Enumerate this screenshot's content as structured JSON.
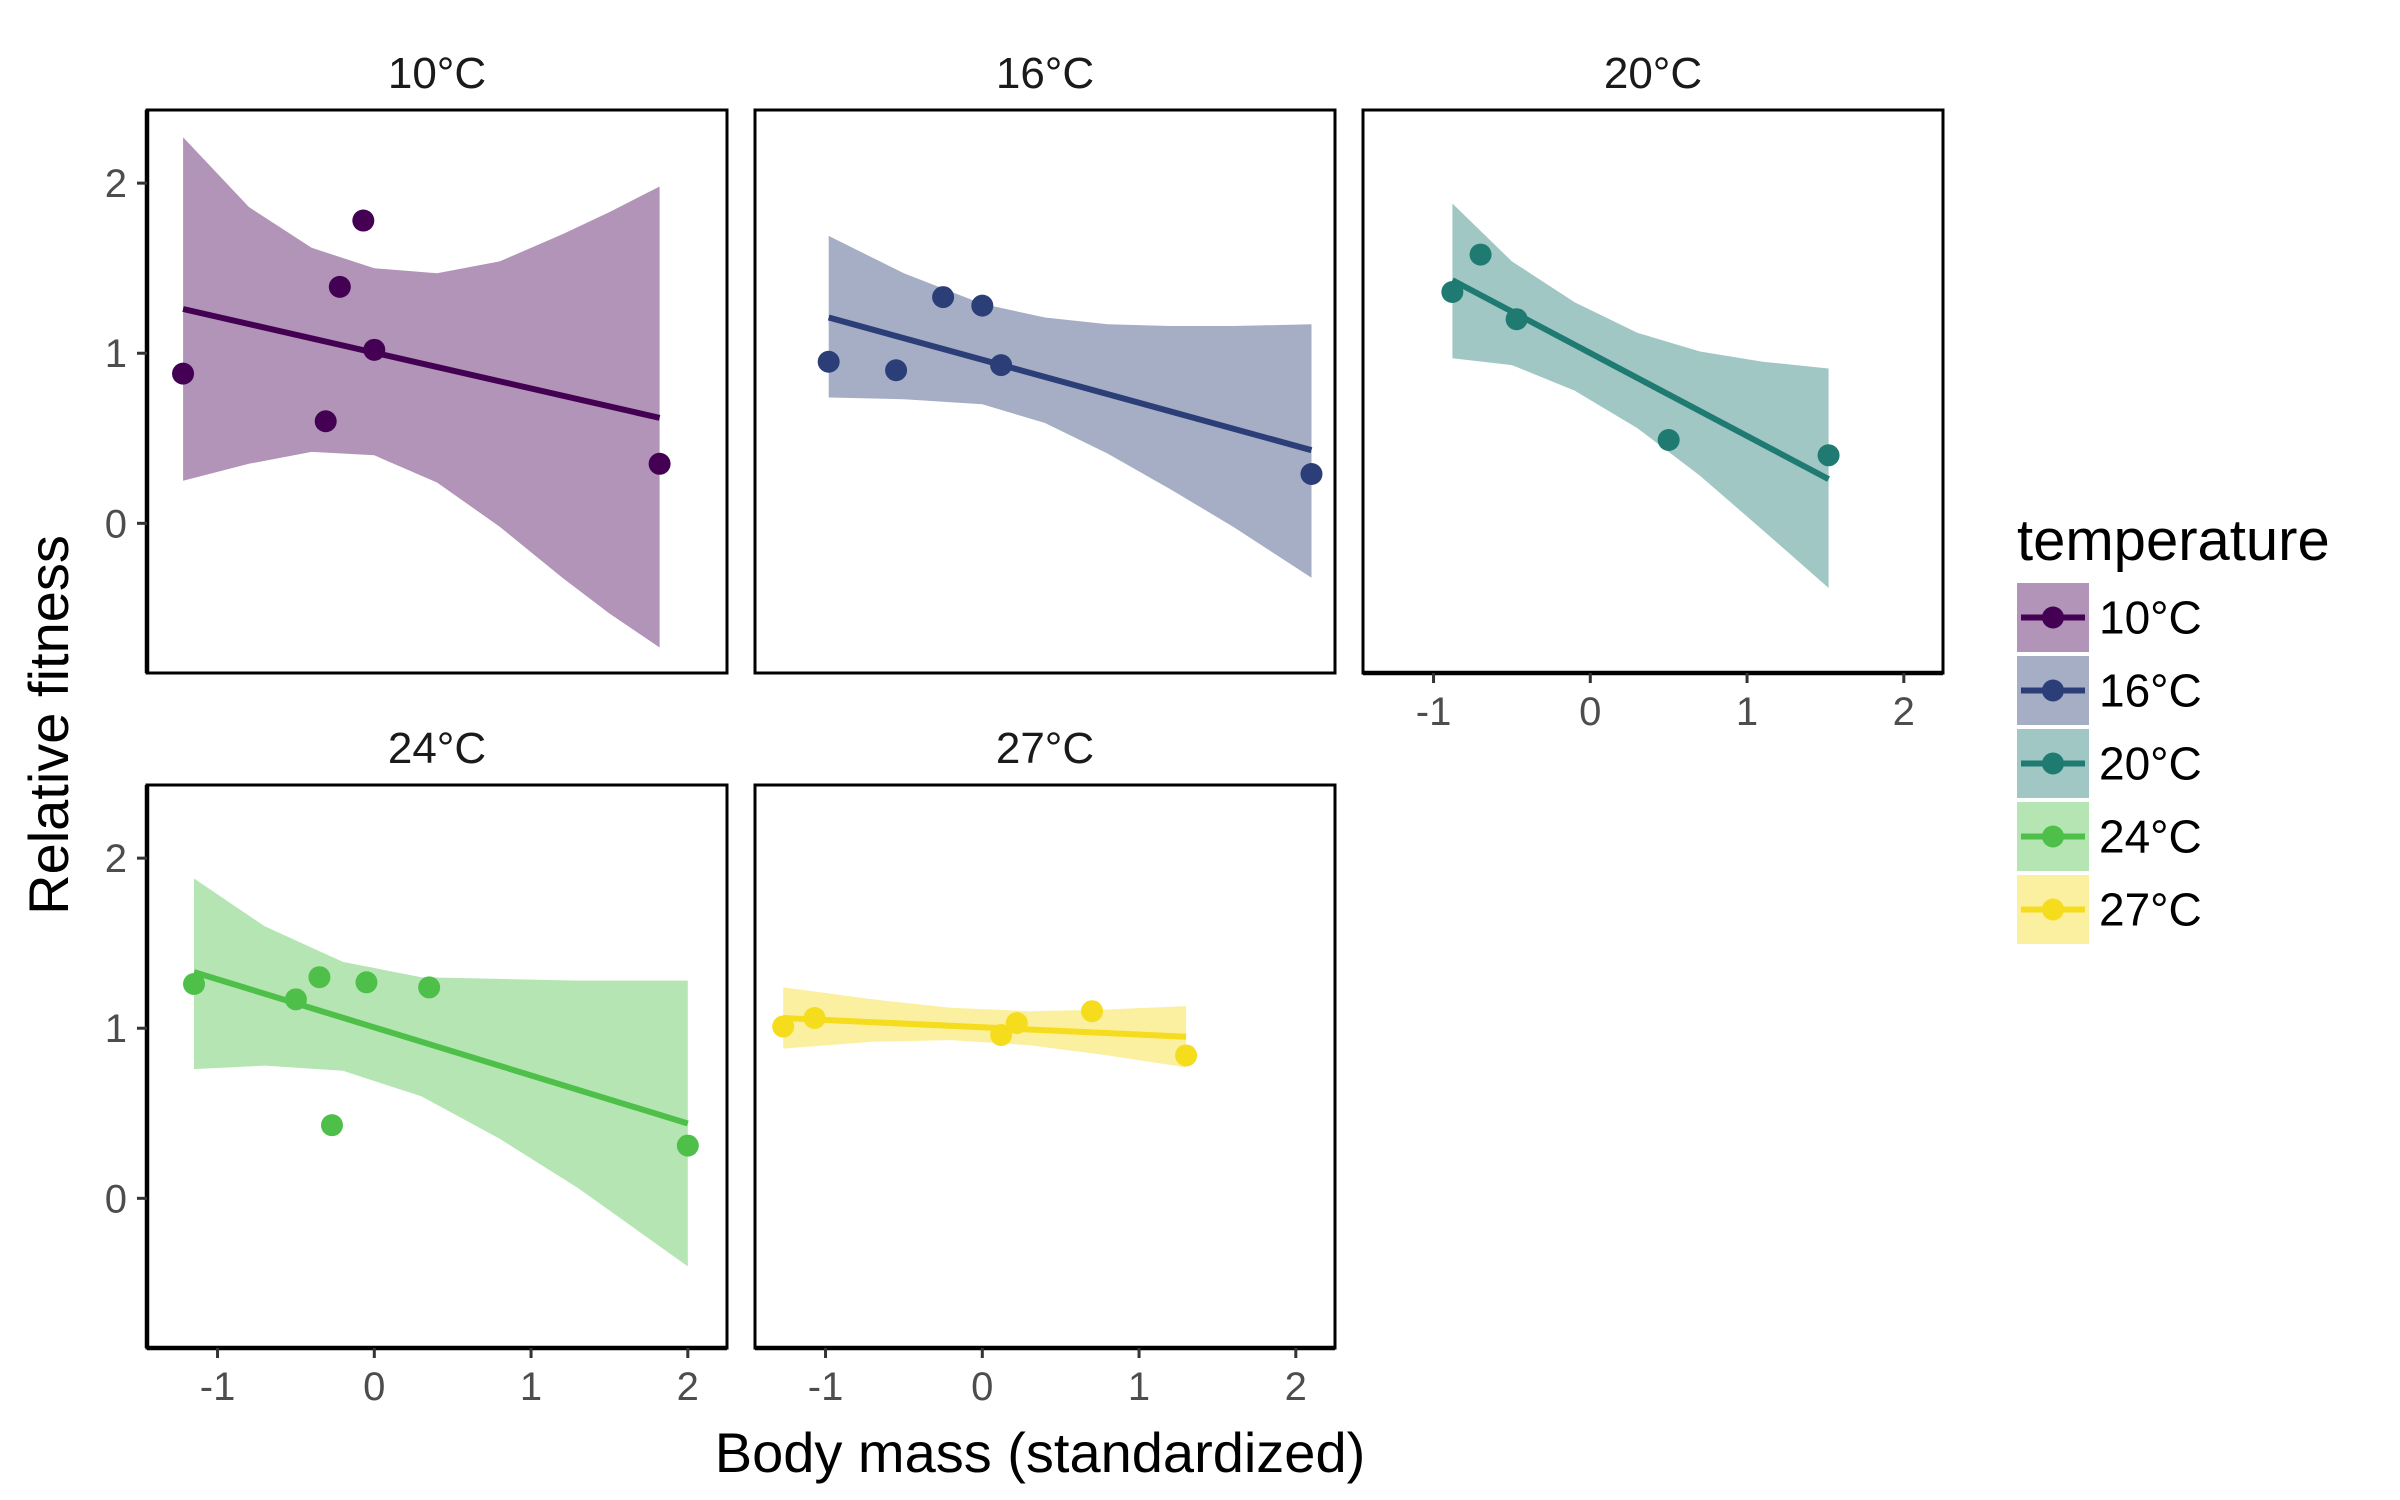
{
  "chart_data": {
    "type": "scatter",
    "facet_by": "temperature",
    "xlabel": "Body mass (standardized)",
    "ylabel": "Relative fitness",
    "xlim": [
      -1.45,
      2.25
    ],
    "ylim": [
      -0.88,
      2.43
    ],
    "x_ticks": [
      -1,
      0,
      1,
      2
    ],
    "y_ticks": [
      0,
      1,
      2
    ],
    "grid": false,
    "legend": {
      "title": "temperature",
      "placement": "right",
      "entries": [
        "10°C",
        "16°C",
        "20°C",
        "24°C",
        "27°C"
      ]
    },
    "series": [
      {
        "name": "10°C",
        "color": "#440154",
        "points": [
          [
            -1.22,
            0.88
          ],
          [
            -0.22,
            1.39
          ],
          [
            -0.07,
            1.78
          ],
          [
            0.0,
            1.02
          ],
          [
            -0.31,
            0.6
          ],
          [
            1.82,
            0.35
          ]
        ],
        "fit": [
          [
            -1.22,
            1.26
          ],
          [
            1.82,
            0.62
          ]
        ],
        "ribbon": [
          {
            "x": -1.22,
            "lo": 0.25,
            "hi": 2.27
          },
          {
            "x": -0.8,
            "lo": 0.35,
            "hi": 1.86
          },
          {
            "x": -0.4,
            "lo": 0.42,
            "hi": 1.62
          },
          {
            "x": 0.0,
            "lo": 0.4,
            "hi": 1.5
          },
          {
            "x": 0.4,
            "lo": 0.24,
            "hi": 1.47
          },
          {
            "x": 0.8,
            "lo": -0.02,
            "hi": 1.54
          },
          {
            "x": 1.2,
            "lo": -0.32,
            "hi": 1.7
          },
          {
            "x": 1.5,
            "lo": -0.53,
            "hi": 1.83
          },
          {
            "x": 1.82,
            "lo": -0.73,
            "hi": 1.98
          }
        ]
      },
      {
        "name": "16°C",
        "color": "#2c3e78",
        "points": [
          [
            -0.98,
            0.95
          ],
          [
            -0.55,
            0.9
          ],
          [
            -0.25,
            1.33
          ],
          [
            0.0,
            1.28
          ],
          [
            0.12,
            0.93
          ],
          [
            2.1,
            0.29
          ]
        ],
        "fit": [
          [
            -0.98,
            1.21
          ],
          [
            2.1,
            0.43
          ]
        ],
        "ribbon": [
          {
            "x": -0.98,
            "lo": 0.74,
            "hi": 1.69
          },
          {
            "x": -0.5,
            "lo": 0.73,
            "hi": 1.47
          },
          {
            "x": 0.0,
            "lo": 0.7,
            "hi": 1.29
          },
          {
            "x": 0.4,
            "lo": 0.59,
            "hi": 1.21
          },
          {
            "x": 0.8,
            "lo": 0.41,
            "hi": 1.17
          },
          {
            "x": 1.2,
            "lo": 0.2,
            "hi": 1.16
          },
          {
            "x": 1.6,
            "lo": -0.02,
            "hi": 1.16
          },
          {
            "x": 2.1,
            "lo": -0.32,
            "hi": 1.17
          }
        ]
      },
      {
        "name": "20°C",
        "color": "#1f7a72",
        "points": [
          [
            -0.88,
            1.36
          ],
          [
            -0.7,
            1.58
          ],
          [
            -0.47,
            1.2
          ],
          [
            0.5,
            0.49
          ],
          [
            1.52,
            0.4
          ]
        ],
        "fit": [
          [
            -0.88,
            1.43
          ],
          [
            1.52,
            0.26
          ]
        ],
        "ribbon": [
          {
            "x": -0.88,
            "lo": 0.97,
            "hi": 1.88
          },
          {
            "x": -0.5,
            "lo": 0.93,
            "hi": 1.54
          },
          {
            "x": -0.1,
            "lo": 0.78,
            "hi": 1.3
          },
          {
            "x": 0.3,
            "lo": 0.56,
            "hi": 1.12
          },
          {
            "x": 0.7,
            "lo": 0.28,
            "hi": 1.01
          },
          {
            "x": 1.1,
            "lo": -0.04,
            "hi": 0.95
          },
          {
            "x": 1.52,
            "lo": -0.38,
            "hi": 0.91
          }
        ]
      },
      {
        "name": "24°C",
        "color": "#4ec04a",
        "points": [
          [
            -1.15,
            1.26
          ],
          [
            -0.5,
            1.17
          ],
          [
            -0.35,
            1.3
          ],
          [
            -0.05,
            1.27
          ],
          [
            0.35,
            1.24
          ],
          [
            -0.27,
            0.43
          ],
          [
            2.0,
            0.31
          ]
        ],
        "fit": [
          [
            -1.15,
            1.33
          ],
          [
            2.0,
            0.44
          ]
        ],
        "ribbon": [
          {
            "x": -1.15,
            "lo": 0.76,
            "hi": 1.88
          },
          {
            "x": -0.7,
            "lo": 0.78,
            "hi": 1.6
          },
          {
            "x": -0.2,
            "lo": 0.75,
            "hi": 1.39
          },
          {
            "x": 0.3,
            "lo": 0.6,
            "hi": 1.3
          },
          {
            "x": 0.8,
            "lo": 0.35,
            "hi": 1.29
          },
          {
            "x": 1.3,
            "lo": 0.06,
            "hi": 1.28
          },
          {
            "x": 2.0,
            "lo": -0.4,
            "hi": 1.28
          }
        ]
      },
      {
        "name": "27°C",
        "color": "#f5dc1c",
        "points": [
          [
            -1.27,
            1.01
          ],
          [
            -1.07,
            1.06
          ],
          [
            0.12,
            0.96
          ],
          [
            0.22,
            1.03
          ],
          [
            0.7,
            1.1
          ],
          [
            1.3,
            0.84
          ]
        ],
        "fit": [
          [
            -1.27,
            1.06
          ],
          [
            1.3,
            0.95
          ]
        ],
        "ribbon": [
          {
            "x": -1.27,
            "lo": 0.88,
            "hi": 1.24
          },
          {
            "x": -0.7,
            "lo": 0.92,
            "hi": 1.17
          },
          {
            "x": -0.2,
            "lo": 0.93,
            "hi": 1.12
          },
          {
            "x": 0.3,
            "lo": 0.9,
            "hi": 1.1
          },
          {
            "x": 0.8,
            "lo": 0.84,
            "hi": 1.11
          },
          {
            "x": 1.3,
            "lo": 0.77,
            "hi": 1.13
          }
        ]
      }
    ]
  }
}
